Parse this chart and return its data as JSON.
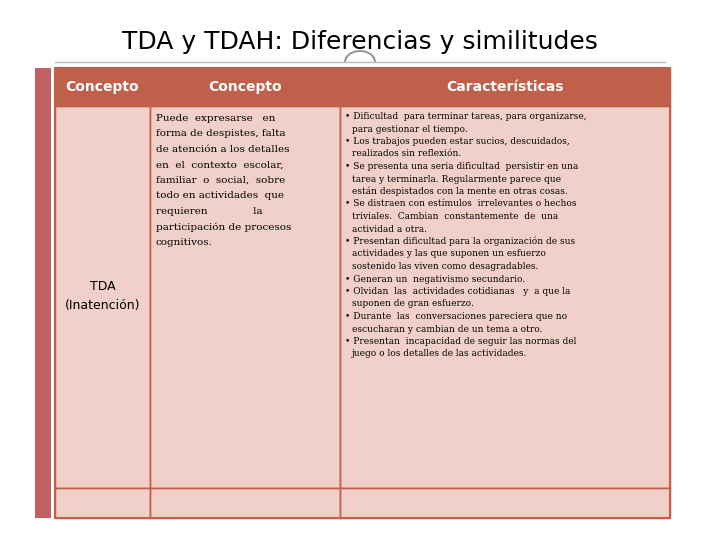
{
  "title": "TDA y TDAH: Diferencias y similitudes",
  "title_fontsize": 18,
  "background_color": "#ffffff",
  "header_bg_color": "#c0604a",
  "header_text_color": "#ffffff",
  "cell_bg_color": "#f2d0ca",
  "row_label": "TDA\n(Inatención)",
  "col1_header": "Concepto",
  "col2_header": "Características",
  "concepto_lines": [
    "Puede  expresarse   en",
    "forma de despistes, falta",
    "de atención a los detalles",
    "en  el  contexto  escolar,",
    "familiar  o  social,  sobre",
    "todo en actividades  que",
    "requieren              la",
    "participación de procesos",
    "cognitivos."
  ],
  "caracteristicas_bullets": [
    "Dificultad  para terminar tareas, para organizarse,\npara gestionar el tiempo.",
    "Los trabajos pueden estar sucios, descuidados,\nrealizados sin reflexión.",
    "Se presenta una seria dificultad  persistir en una\ntarea y terminarla. Regularmente parece que\nestán despistados con la mente en otras cosas.",
    "Se distraen con estímulos  irrelevantes o hechos\ntriviales.  Cambian  constantemente  de  una\nactividad a otra.",
    "Presentan dificultad para la organización de sus\nactividades y las que suponen un esfuerzo\nsostenido las viven como desagradables.",
    "Generan un  negativismo secundario.",
    "Olvidan  las  actividades cotidianas   y  a que la\nsuponen de gran esfuerzo.",
    "Durante  las  conversaciones pareciera que no\nescucharan y cambian de un tema a otro.",
    "Presentan  incapacidad de seguir las normas del\njuego o los detalles de las actividades."
  ],
  "border_color": "#c0604a",
  "text_color": "#000000",
  "accent_color": "#8b6f6f"
}
